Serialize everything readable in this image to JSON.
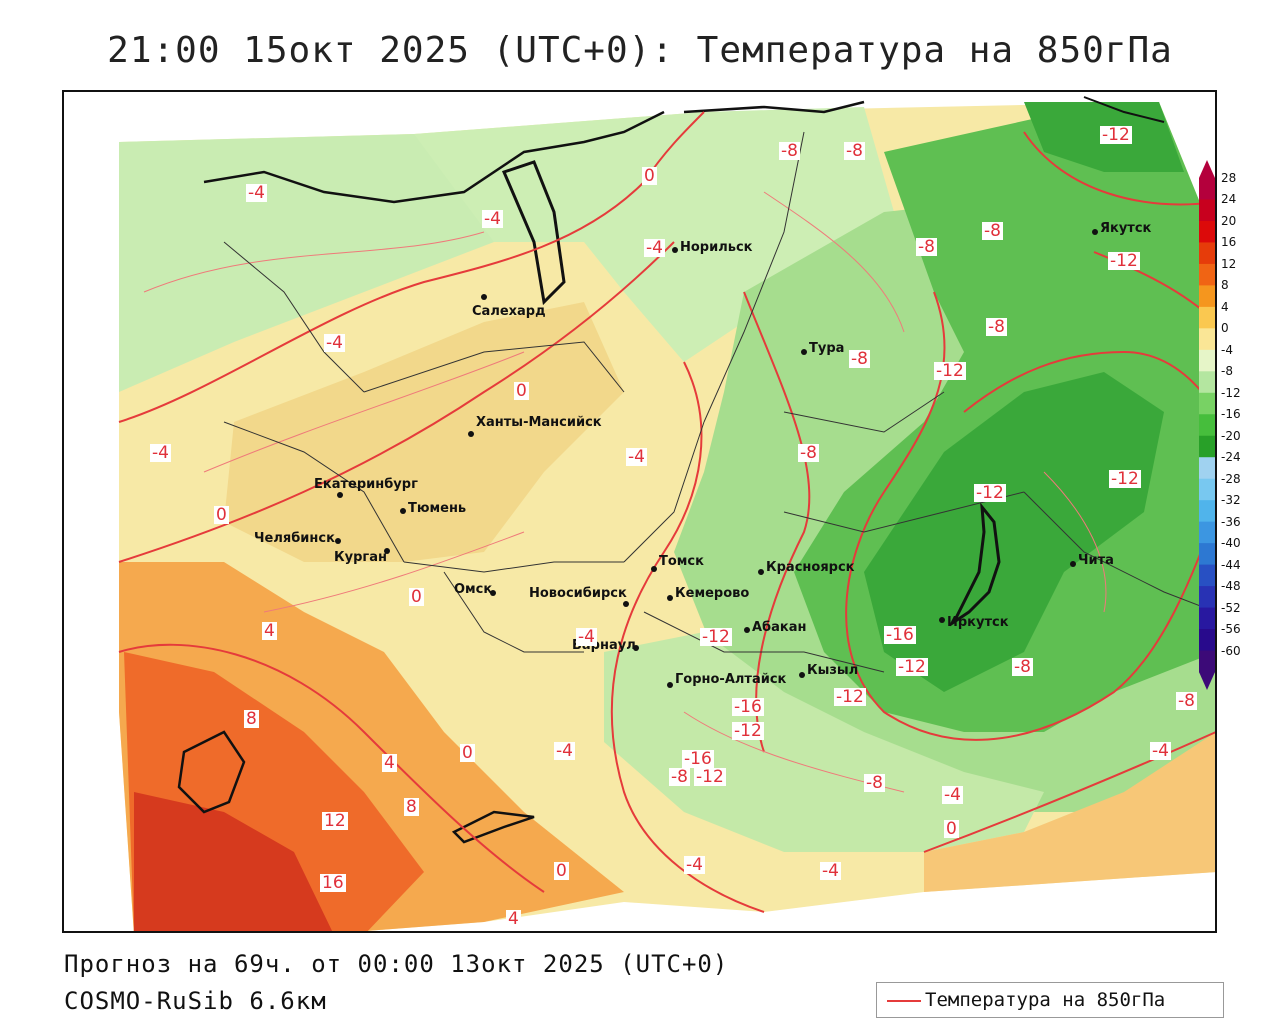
{
  "header": {
    "title": "21:00 15окт 2025 (UTC+0): Температура на 850гПа"
  },
  "footer": {
    "forecast": "Прогноз на 69ч. от 00:00 13окт 2025 (UTC+0)",
    "model": "COSMO-RuSib 6.6км"
  },
  "legend": {
    "series_label": "Температура на 850гПа",
    "color": "#e53b3b"
  },
  "colorbar": {
    "labels": [
      "28",
      "24",
      "20",
      "16",
      "12",
      "8",
      "4",
      "0",
      "-4",
      "-8",
      "-12",
      "-16",
      "-20",
      "-24",
      "-28",
      "-32",
      "-36",
      "-40",
      "-44",
      "-48",
      "-52",
      "-56",
      "-60"
    ],
    "colors": [
      "#b4003c",
      "#c8001e",
      "#dc0a0a",
      "#e63c0a",
      "#f06414",
      "#f5961e",
      "#fac850",
      "#fae696",
      "#e6f5c8",
      "#b4e6a0",
      "#78d264",
      "#46be3c",
      "#28a028",
      "#a0d2f0",
      "#78c8f0",
      "#50b4eb",
      "#3c96e1",
      "#2d78d2",
      "#2850c3",
      "#2832b4",
      "#2818a0",
      "#280a8c",
      "#3c0a78"
    ]
  },
  "cities": [
    {
      "name": "Норильск"
    },
    {
      "name": "Салехард"
    },
    {
      "name": "Тура"
    },
    {
      "name": "Якутск"
    },
    {
      "name": "Ханты-Мансийск"
    },
    {
      "name": "Екатеринбург"
    },
    {
      "name": "Тюмень"
    },
    {
      "name": "Челябинск"
    },
    {
      "name": "Курган"
    },
    {
      "name": "Омск"
    },
    {
      "name": "Новосибирск"
    },
    {
      "name": "Томск"
    },
    {
      "name": "Кемерово"
    },
    {
      "name": "Барнаул"
    },
    {
      "name": "Красноярск"
    },
    {
      "name": "Абакан"
    },
    {
      "name": "Горно-Алтайск"
    },
    {
      "name": "Кызыл"
    },
    {
      "name": "Иркутск"
    },
    {
      "name": "Чита"
    }
  ],
  "contour_labels": [
    "0",
    "-4",
    "-4",
    "-8",
    "-8",
    "-12",
    "-8",
    "-8",
    "-12",
    "-4",
    "-8",
    "-8",
    "-12",
    "-4",
    "0",
    "-4",
    "-8",
    "-12",
    "-12",
    "-12",
    "0",
    "-4",
    "-4",
    "0",
    "4",
    "-12",
    "-16",
    "-16",
    "-12",
    "-12",
    "-8",
    "8",
    "4",
    "0",
    "-4",
    "-16",
    "-12",
    "-8",
    "-8",
    "-4",
    "-4",
    "4",
    "8",
    "12",
    "16",
    "0",
    "-4",
    "-4",
    "4",
    "0",
    "-8"
  ]
}
